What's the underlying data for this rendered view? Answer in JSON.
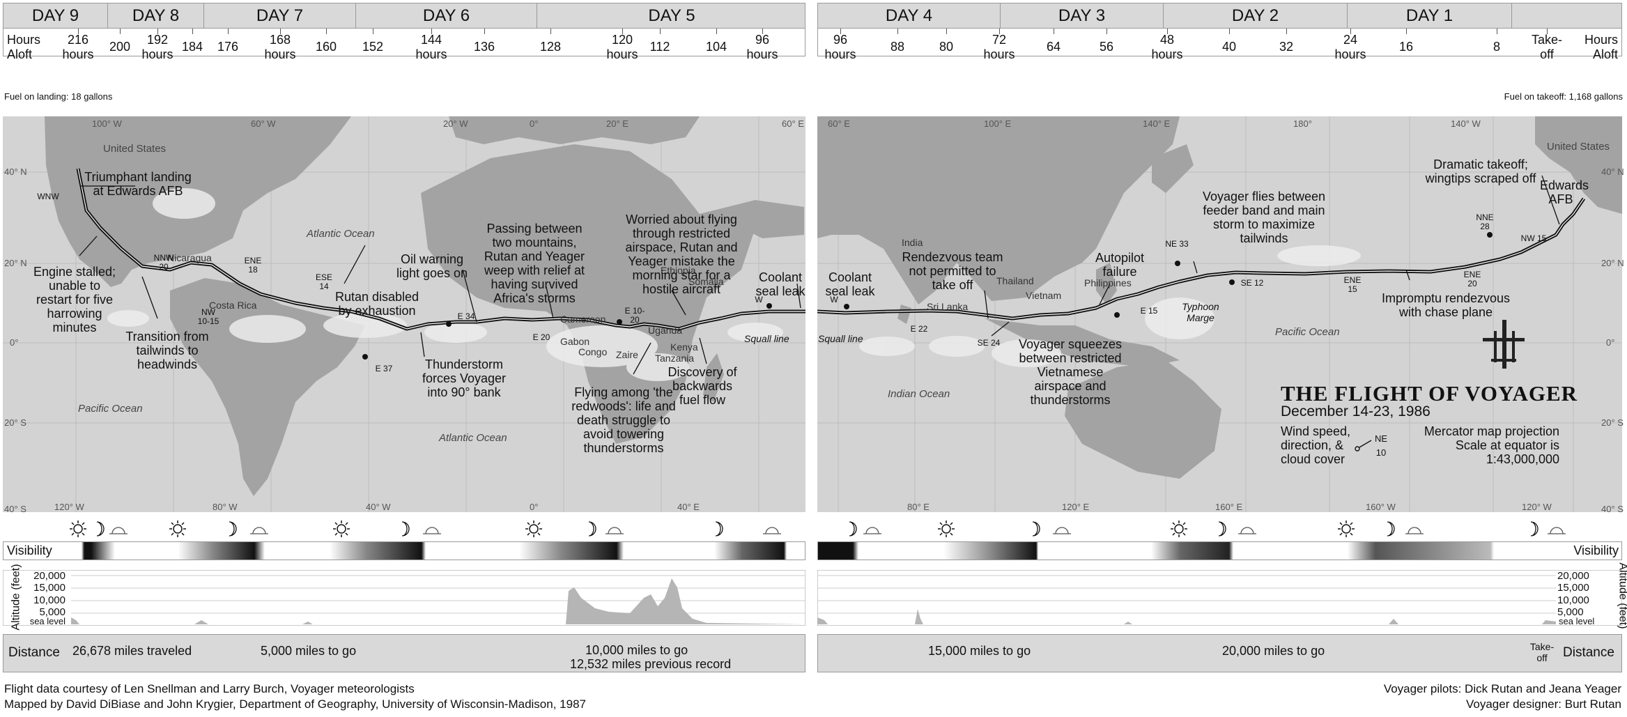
{
  "days_left": [
    "DAY 9",
    "DAY 8",
    "DAY 7",
    "DAY 6",
    "DAY 5"
  ],
  "days_right": [
    "DAY 4",
    "DAY 3",
    "DAY 2",
    "DAY 1"
  ],
  "hours_label": "Hours Aloft",
  "hours_left": [
    "216 hours",
    "200",
    "192 hours",
    "184",
    "176",
    "168 hours",
    "160",
    "152",
    "144 hours",
    "136",
    "128",
    "120 hours",
    "112",
    "104",
    "96 hours"
  ],
  "hours_right": [
    "96 hours",
    "88",
    "80",
    "72 hours",
    "64",
    "56",
    "48 hours",
    "40",
    "32",
    "24 hours",
    "16",
    "8",
    "Take-off"
  ],
  "fuel_landing": "Fuel on landing: 18 gallons",
  "fuel_takeoff": "Fuel on takeoff: 1,168 gallons",
  "regions": {
    "us_left": "United States",
    "us_right": "United States",
    "atlantic1": "Atlantic Ocean",
    "atlantic2": "Atlantic Ocean",
    "pacific1": "Pacific Ocean",
    "pacific2": "Pacific Ocean",
    "indian": "Indian Ocean",
    "nicaragua": "Nicaragua",
    "costa_rica": "Costa Rica",
    "cameroon": "Cameroon",
    "gabon": "Gabon",
    "congo": "Congo",
    "zaire": "Zaire",
    "uganda": "Uganda",
    "kenya": "Kenya",
    "tanzania": "Tanzania",
    "ethiopia": "Ethiopia",
    "somalia": "Somalia",
    "india": "India",
    "sri_lanka": "Sri Lanka",
    "thailand": "Thailand",
    "vietnam": "Vietnam",
    "philippines": "Philippines",
    "squall1": "Squall line",
    "squall2": "Squall line",
    "typhoon": "Typhoon Marge"
  },
  "grid": {
    "lon_left": [
      "100° W",
      "60° W",
      "20° W",
      "0°",
      "20° E",
      "60° E"
    ],
    "lon_left_bottom": [
      "120° W",
      "80° W",
      "40° W",
      "0°",
      "40° E"
    ],
    "lon_right": [
      "60° E",
      "100° E",
      "140° E",
      "180°",
      "140° W"
    ],
    "lon_right_bottom": [
      "80° E",
      "120° E",
      "160° E",
      "160° W",
      "120° W"
    ],
    "lat": [
      "40° N",
      "20° N",
      "0°",
      "20° S",
      "40° S"
    ]
  },
  "annotations": {
    "a1": "Triumphant landing at Edwards AFB",
    "a2": "Engine stalled; unable to restart for five harrowing minutes",
    "a3": "Transition from tailwinds to headwinds",
    "a4": "Rutan disabled by exhaustion",
    "a5": "Oil warning light goes on",
    "a6": "Thunderstorm forces Voyager into 90° bank",
    "a7": "Passing between two mountains, Rutan and Yeager weep with relief at having survived Africa's storms",
    "a8": "Worried about flying through restricted airspace, Rutan and Yeager mistake the morning star for a hostile aircraft",
    "a9": "Coolant seal leak",
    "a10": "Flying among 'the redwoods': life and death struggle to avoid towering thunderstorms",
    "a11": "Discovery of backwards fuel flow",
    "a12": "Coolant seal leak",
    "a13": "Rendezvous team not permitted to take off",
    "a14": "Autopilot failure",
    "a15": "Voyager flies between feeder band and main storm to maximize tailwinds",
    "a16": "Dramatic takeoff; wingtips scraped off",
    "a17": "Edwards AFB",
    "a18": "Voyager squeezes between restricted Vietnamese airspace and thunderstorms",
    "a19": "Impromptu rendezvous with chase plane"
  },
  "winds": [
    "WNW",
    "NNW 20",
    "NW 10-15",
    "ENE 18",
    "ESE 14",
    "E 34",
    "E 37",
    "E 10-20",
    "E 20",
    "W",
    "W",
    "E 22",
    "SE 24",
    "E 15",
    "NE 33",
    "SE 12",
    "ENE 15",
    "ENE 20",
    "NNE 28",
    "NW 15"
  ],
  "title": {
    "main": "THE FLIGHT OF VOYAGER",
    "dates": "December 14-23, 1986",
    "legend": "Wind speed, direction, & cloud cover",
    "legend_sample": "NE 10",
    "projection": "Mercator map projection",
    "scale1": "Scale at equator is",
    "scale2": "1:43,000,000"
  },
  "visibility_label": "Visibility",
  "altitude_label": "Altitude (feet)",
  "altitude_ticks": [
    "20,000",
    "15,000",
    "10,000",
    "5,000",
    "sea level"
  ],
  "distance_label": "Distance",
  "distance_left": [
    "26,678 miles traveled",
    "5,000 miles to go",
    "10,000 miles to go",
    "12,532 miles previous record"
  ],
  "distance_right": [
    "15,000 miles to go",
    "20,000 miles to go",
    "Take-off"
  ],
  "credits": {
    "l1": "Flight data courtesy of Len Snellman and Larry Burch, Voyager meteorologists",
    "l2": "Mapped by David DiBiase and John Krygier, Department of Geography, University of Wisconsin-Madison, 1987",
    "r1": "Voyager pilots: Dick Rutan and Jeana Yeager",
    "r2": "Voyager designer: Burt Rutan"
  },
  "colors": {
    "ocean": "#d3d3d3",
    "land": "#9e9e9e",
    "track": "#111111",
    "header": "#d9d9d9"
  }
}
